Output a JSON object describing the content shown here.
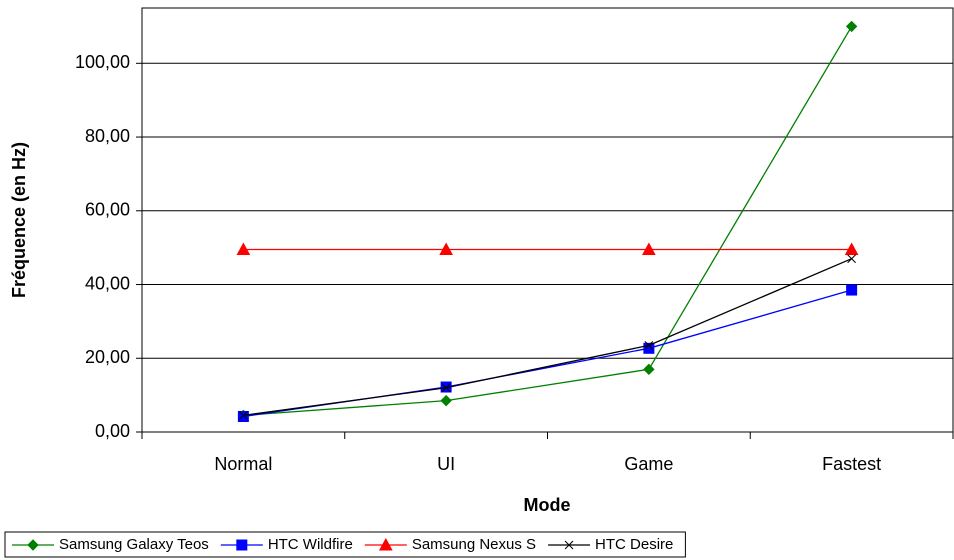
{
  "chart_data": {
    "type": "line",
    "x_label": "Mode",
    "y_label": "Fréquence (en Hz)",
    "categories": [
      "Normal",
      "UI",
      "Game",
      "Fastest"
    ],
    "series": [
      {
        "name": "Samsung Galaxy Teos",
        "color": "#008000",
        "marker": "diamond",
        "values": [
          4.5,
          8.5,
          17,
          110
        ]
      },
      {
        "name": "HTC Wildfire",
        "color": "#0000ff",
        "marker": "square",
        "values": [
          4.2,
          12.2,
          22.7,
          38.5
        ]
      },
      {
        "name": "Samsung Nexus S",
        "color": "#ff0000",
        "marker": "triangle",
        "values": [
          49.5,
          49.5,
          49.5,
          49.5
        ]
      },
      {
        "name": "HTC Desire",
        "color": "#000000",
        "marker": "x",
        "values": [
          4.5,
          12,
          23.5,
          47
        ]
      }
    ],
    "ylim": [
      0,
      115
    ],
    "yticks": [
      {
        "value": 0,
        "label": "0,00"
      },
      {
        "value": 20,
        "label": "20,00"
      },
      {
        "value": 40,
        "label": "40,00"
      },
      {
        "value": 60,
        "label": "60,00"
      },
      {
        "value": 80,
        "label": "80,00"
      },
      {
        "value": 100,
        "label": "100,00"
      }
    ],
    "grid": true,
    "legend": "bottom"
  }
}
